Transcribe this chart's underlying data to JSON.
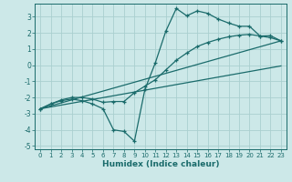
{
  "xlabel": "Humidex (Indice chaleur)",
  "bg_color": "#cce8e8",
  "grid_color": "#aacfcf",
  "line_color": "#1a6b6b",
  "xlim": [
    -0.5,
    23.5
  ],
  "ylim": [
    -5.2,
    3.8
  ],
  "xticks": [
    0,
    1,
    2,
    3,
    4,
    5,
    6,
    7,
    8,
    9,
    10,
    11,
    12,
    13,
    14,
    15,
    16,
    17,
    18,
    19,
    20,
    21,
    22,
    23
  ],
  "yticks": [
    -5,
    -4,
    -3,
    -2,
    -1,
    0,
    1,
    2,
    3
  ],
  "line1_x": [
    0,
    1,
    2,
    3,
    4,
    5,
    6,
    7,
    8,
    9,
    10,
    11,
    12,
    13,
    14,
    15,
    16,
    17,
    18,
    19,
    20,
    21,
    22,
    23
  ],
  "line1_y": [
    -2.7,
    -2.4,
    -2.2,
    -2.1,
    -2.2,
    -2.4,
    -2.7,
    -4.0,
    -4.1,
    -4.7,
    -1.5,
    0.15,
    2.1,
    3.5,
    3.05,
    3.35,
    3.2,
    2.85,
    2.6,
    2.4,
    2.4,
    1.8,
    1.82,
    1.5
  ],
  "line2_x": [
    0,
    1,
    2,
    3,
    4,
    5,
    6,
    7,
    8,
    9,
    10,
    11,
    12,
    13,
    14,
    15,
    16,
    17,
    18,
    19,
    20,
    21,
    22,
    23
  ],
  "line2_y": [
    -2.7,
    -2.4,
    -2.15,
    -2.0,
    -2.0,
    -2.1,
    -2.3,
    -2.25,
    -2.25,
    -1.7,
    -1.3,
    -0.9,
    -0.3,
    0.3,
    0.75,
    1.15,
    1.4,
    1.6,
    1.75,
    1.85,
    1.9,
    1.8,
    1.7,
    1.5
  ],
  "line3_x": [
    0,
    23
  ],
  "line3_y": [
    -2.7,
    1.5
  ],
  "line4_x": [
    0,
    23
  ],
  "line4_y": [
    -2.7,
    -0.05
  ]
}
